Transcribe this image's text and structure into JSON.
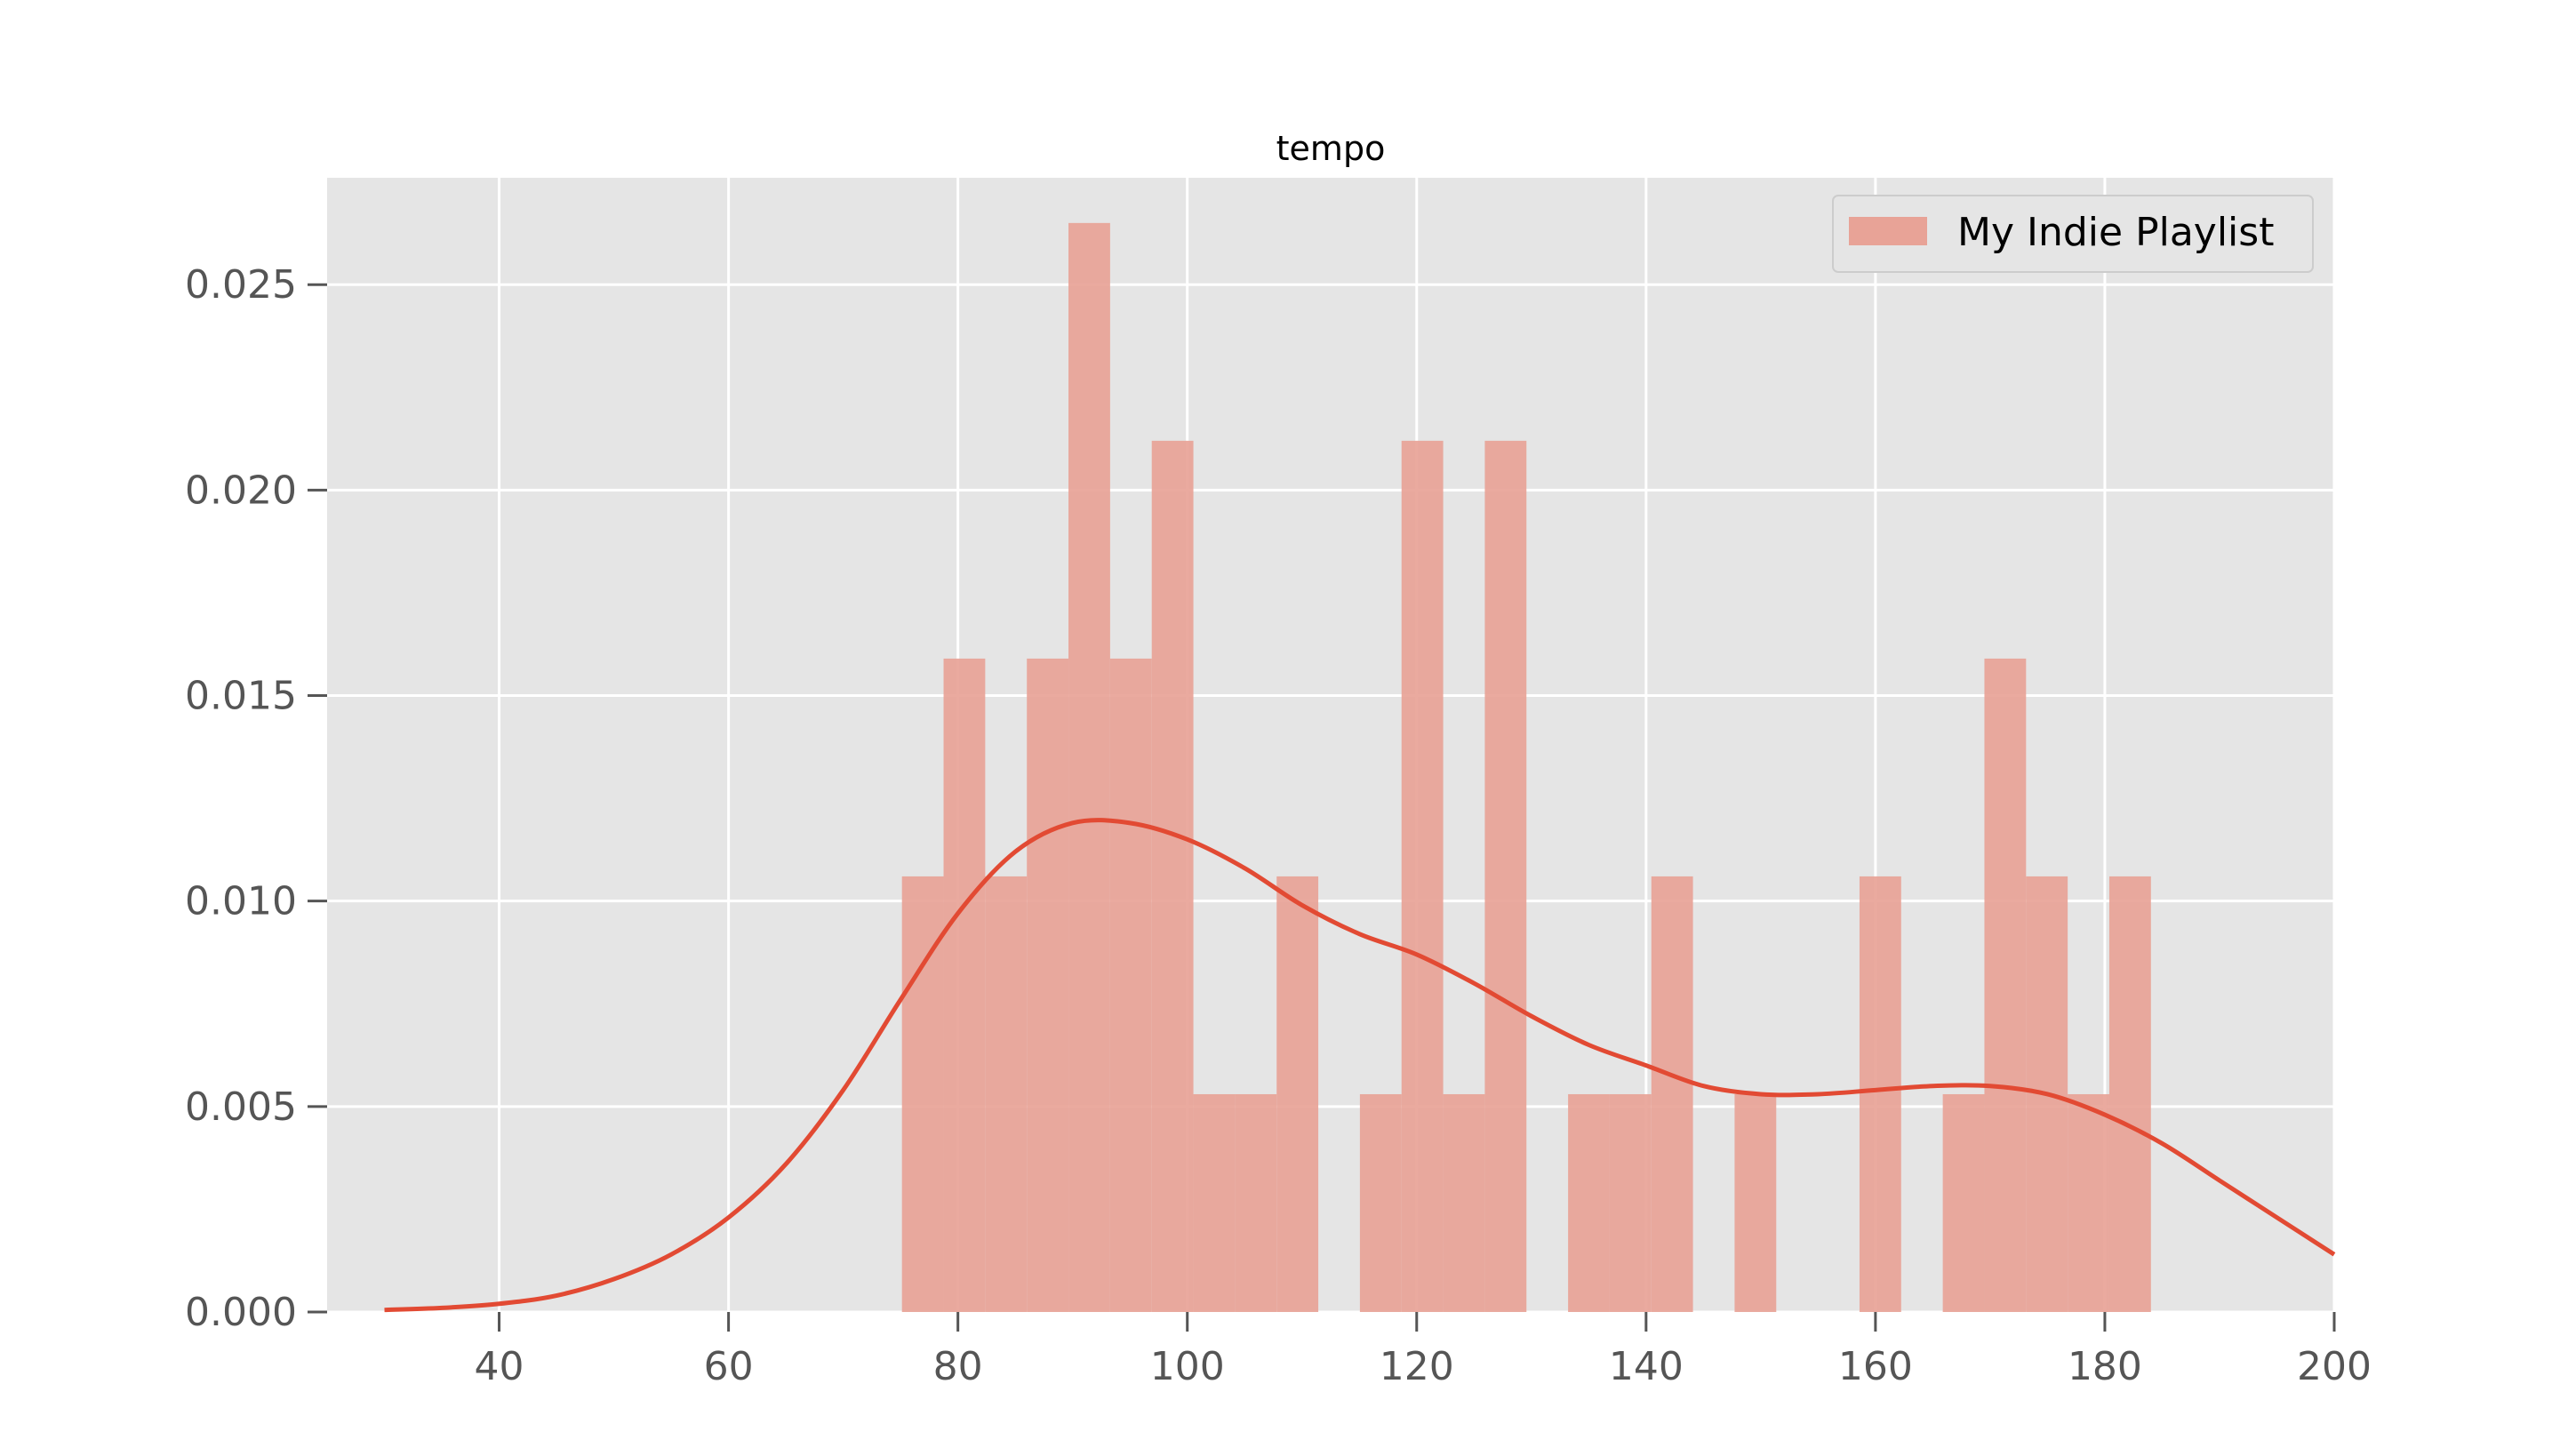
{
  "chart_data": {
    "type": "bar",
    "title": "tempo",
    "xlabel": "",
    "ylabel": "",
    "xlim": [
      25,
      200
    ],
    "ylim": [
      0,
      0.0276
    ],
    "x_ticks": [
      40,
      60,
      80,
      100,
      120,
      140,
      160,
      180,
      200
    ],
    "y_ticks": [
      0.0,
      0.005,
      0.01,
      0.015,
      0.02,
      0.025
    ],
    "y_tick_labels": [
      "0.000",
      "0.005",
      "0.010",
      "0.015",
      "0.020",
      "0.025"
    ],
    "grid": true,
    "legend_position": "top-right",
    "colors": {
      "plot_background": "#e5e5e5",
      "grid": "#ffffff",
      "bars": "#e8a397",
      "kde_line": "#e24a33"
    },
    "series": [
      {
        "name": "My Indie Playlist",
        "kind": "histogram",
        "bin_start": 75.12,
        "bin_width": 3.63,
        "densities": [
          0.0106,
          0.0159,
          0.0106,
          0.0159,
          0.0265,
          0.0159,
          0.0212,
          0.0053,
          0.0053,
          0.0106,
          0.0,
          0.0053,
          0.0212,
          0.0053,
          0.0212,
          0.0,
          0.0053,
          0.0053,
          0.0106,
          0.0,
          0.0053,
          0.0,
          0.0,
          0.0106,
          0.0,
          0.0053,
          0.0159,
          0.0106,
          0.0053,
          0.0106
        ]
      },
      {
        "kind": "kde",
        "x": [
          30,
          35,
          40,
          45,
          50,
          55,
          60,
          65,
          70,
          75,
          80,
          85,
          90,
          95,
          100,
          105,
          110,
          115,
          120,
          125,
          130,
          135,
          140,
          145,
          150,
          155,
          160,
          165,
          170,
          175,
          180,
          185,
          190,
          195,
          200
        ],
        "y": [
          5e-05,
          0.0001,
          0.0002,
          0.0004,
          0.0008,
          0.0014,
          0.0023,
          0.0036,
          0.0054,
          0.0076,
          0.0097,
          0.0112,
          0.0119,
          0.0119,
          0.0115,
          0.0108,
          0.0099,
          0.0092,
          0.0087,
          0.008,
          0.0072,
          0.0065,
          0.006,
          0.0055,
          0.0053,
          0.0053,
          0.0054,
          0.0055,
          0.0055,
          0.0053,
          0.0048,
          0.0041,
          0.0032,
          0.0023,
          0.0014
        ]
      }
    ]
  }
}
